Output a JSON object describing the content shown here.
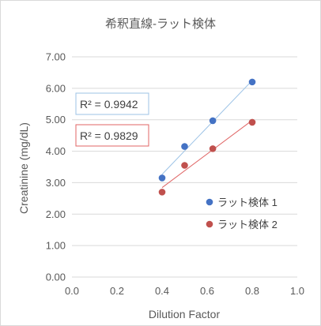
{
  "chart_data": {
    "type": "scatter",
    "title": "希釈直線-ラット検体",
    "xlabel": "Dilution Factor",
    "ylabel": "Creatinine (mg/dL)",
    "xlim": [
      0.0,
      1.0
    ],
    "ylim": [
      0.0,
      7.0
    ],
    "x_ticks": [
      "0.0",
      "0.2",
      "0.4",
      "0.6",
      "0.8",
      "1.0"
    ],
    "y_ticks": [
      "0.00",
      "1.00",
      "2.00",
      "3.00",
      "4.00",
      "5.00",
      "6.00",
      "7.00"
    ],
    "grid": "horizontal",
    "legend_position": "right",
    "series": [
      {
        "name": "ラット検体  1",
        "color": "#4472c4",
        "trend_color": "#9dc3e6",
        "x": [
          0.4,
          0.5,
          0.625,
          0.8
        ],
        "y": [
          3.15,
          4.15,
          4.97,
          6.2
        ],
        "r2": "R² = 0.9942"
      },
      {
        "name": "ラット検体  2",
        "color": "#c0504d",
        "trend_color": "#e06666",
        "x": [
          0.4,
          0.5,
          0.625,
          0.8
        ],
        "y": [
          2.7,
          3.55,
          4.08,
          4.92
        ],
        "r2": "R² = 0.9829"
      }
    ]
  }
}
